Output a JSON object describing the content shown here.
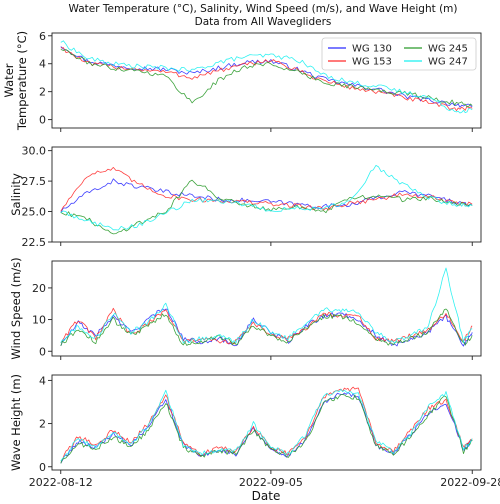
{
  "title_line1": "Water Temperature (°C), Salinity, Wind Speed (m/s), and Wave Height (m)",
  "title_line2": "Data from All Wavegliders",
  "xlabel": "Date",
  "colors": {
    "WG 130": "#2b2bff",
    "WG 153": "#ff2b2b",
    "WG 245": "#2a9a2a",
    "WG 247": "#19f0f0"
  },
  "chart_data": [
    {
      "type": "line",
      "ylabel": "Water Temperature (°C)",
      "ylabel_lines": [
        "Water",
        "Temperature (°C)"
      ],
      "xlim": [
        "2022-08-11",
        "2022-09-29"
      ],
      "ylim": [
        -0.6,
        6.2
      ],
      "yticks": [
        0,
        2,
        4,
        6
      ],
      "xticks": [
        "2022-08-12",
        "2022-09-05",
        "2022-09-28"
      ],
      "x": [
        "2022-08-12",
        "2022-08-15",
        "2022-08-18",
        "2022-08-21",
        "2022-08-24",
        "2022-08-27",
        "2022-08-30",
        "2022-09-02",
        "2022-09-05",
        "2022-09-08",
        "2022-09-11",
        "2022-09-14",
        "2022-09-17",
        "2022-09-20",
        "2022-09-23",
        "2022-09-26",
        "2022-09-28"
      ],
      "series": [
        {
          "name": "WG 130",
          "values": [
            5.3,
            4.2,
            3.9,
            3.7,
            3.6,
            3.3,
            3.7,
            4.1,
            4.2,
            3.6,
            2.9,
            2.5,
            2.2,
            1.7,
            1.4,
            1.1,
            0.9
          ]
        },
        {
          "name": "WG 153",
          "values": [
            5.2,
            4.0,
            3.8,
            3.6,
            3.4,
            3.0,
            3.5,
            3.9,
            4.3,
            3.5,
            2.8,
            2.3,
            2.0,
            1.6,
            1.2,
            0.8,
            0.8
          ]
        },
        {
          "name": "WG 245",
          "values": [
            5.1,
            4.1,
            3.7,
            3.5,
            3.1,
            1.2,
            2.8,
            3.8,
            4.0,
            3.4,
            2.7,
            2.4,
            2.1,
            1.9,
            1.6,
            1.2,
            1.0
          ]
        },
        {
          "name": "WG 247",
          "values": [
            5.6,
            4.4,
            4.0,
            3.8,
            3.7,
            3.5,
            4.1,
            4.5,
            4.6,
            4.3,
            3.2,
            2.7,
            2.4,
            2.0,
            1.6,
            0.6,
            0.7
          ]
        }
      ],
      "legend": {
        "position": "upper-right",
        "columns": 2,
        "entries": [
          "WG 130",
          "WG 153",
          "WG 245",
          "WG 247"
        ]
      }
    },
    {
      "type": "line",
      "ylabel": "Salinity",
      "ylabel_lines": [
        "Salinity"
      ],
      "xlim": [
        "2022-08-11",
        "2022-09-29"
      ],
      "ylim": [
        22.5,
        30.3
      ],
      "yticks": [
        22.5,
        25.0,
        27.5,
        30.0
      ],
      "x": [
        "2022-08-12",
        "2022-08-15",
        "2022-08-18",
        "2022-08-21",
        "2022-08-24",
        "2022-08-27",
        "2022-08-30",
        "2022-09-02",
        "2022-09-05",
        "2022-09-08",
        "2022-09-11",
        "2022-09-14",
        "2022-09-17",
        "2022-09-20",
        "2022-09-23",
        "2022-09-26",
        "2022-09-28"
      ],
      "series": [
        {
          "name": "WG 130",
          "values": [
            25.0,
            26.5,
            27.5,
            27.0,
            26.6,
            26.3,
            26.0,
            25.9,
            25.8,
            25.6,
            25.4,
            25.6,
            26.1,
            26.6,
            26.3,
            25.8,
            25.5
          ]
        },
        {
          "name": "WG 153",
          "values": [
            25.1,
            28.0,
            28.5,
            27.2,
            26.3,
            26.0,
            25.9,
            25.8,
            25.6,
            25.5,
            25.2,
            25.7,
            26.0,
            26.4,
            26.2,
            25.7,
            25.6
          ]
        },
        {
          "name": "WG 245",
          "values": [
            25.0,
            24.4,
            23.1,
            24.1,
            25.0,
            27.6,
            26.2,
            25.6,
            25.2,
            25.4,
            24.9,
            26.1,
            26.3,
            26.0,
            26.1,
            25.6,
            25.5
          ]
        },
        {
          "name": "WG 247",
          "values": [
            25.0,
            24.3,
            23.5,
            23.9,
            24.9,
            25.9,
            25.9,
            25.6,
            25.1,
            25.3,
            25.2,
            25.9,
            28.7,
            27.3,
            26.1,
            25.6,
            25.5
          ]
        }
      ]
    },
    {
      "type": "line",
      "ylabel": "Wind Speed (m/s)",
      "ylabel_lines": [
        "Wind Speed (m/s)"
      ],
      "xlim": [
        "2022-08-11",
        "2022-09-29"
      ],
      "ylim": [
        -1.5,
        28.5
      ],
      "yticks": [
        0,
        10,
        20
      ],
      "x": [
        "2022-08-12",
        "2022-08-14",
        "2022-08-16",
        "2022-08-18",
        "2022-08-20",
        "2022-08-22",
        "2022-08-24",
        "2022-08-26",
        "2022-08-28",
        "2022-08-30",
        "2022-09-01",
        "2022-09-03",
        "2022-09-05",
        "2022-09-07",
        "2022-09-09",
        "2022-09-11",
        "2022-09-13",
        "2022-09-15",
        "2022-09-17",
        "2022-09-19",
        "2022-09-21",
        "2022-09-23",
        "2022-09-25",
        "2022-09-27",
        "2022-09-28"
      ],
      "series": [
        {
          "name": "WG 130",
          "values": [
            2,
            9,
            5,
            11,
            6,
            10,
            14,
            4,
            3,
            4,
            2,
            10,
            6,
            3,
            8,
            11,
            12,
            10,
            5,
            2,
            4,
            6,
            11,
            2,
            6
          ]
        },
        {
          "name": "WG 153",
          "values": [
            3,
            10,
            4,
            13,
            5,
            9,
            13,
            3,
            4,
            3,
            3,
            9,
            5,
            4,
            7,
            12,
            11,
            11,
            4,
            3,
            5,
            7,
            12,
            3,
            8
          ]
        },
        {
          "name": "WG 245",
          "values": [
            2,
            7,
            3,
            10,
            5,
            8,
            12,
            2,
            3,
            5,
            2,
            8,
            5,
            3,
            7,
            11,
            11,
            9,
            4,
            2,
            4,
            6,
            14,
            2,
            5
          ]
        },
        {
          "name": "WG 247",
          "values": [
            3,
            8,
            4,
            12,
            6,
            9,
            15,
            3,
            4,
            5,
            3,
            10,
            6,
            4,
            9,
            13,
            13,
            12,
            6,
            3,
            5,
            8,
            26,
            3,
            7
          ]
        }
      ]
    },
    {
      "type": "line",
      "ylabel": "Wave Height (m)",
      "ylabel_lines": [
        "Wave Height (m)"
      ],
      "xlim": [
        "2022-08-11",
        "2022-09-29"
      ],
      "ylim": [
        -0.15,
        4.25
      ],
      "yticks": [
        0,
        2,
        4
      ],
      "x": [
        "2022-08-12",
        "2022-08-14",
        "2022-08-16",
        "2022-08-18",
        "2022-08-20",
        "2022-08-22",
        "2022-08-24",
        "2022-08-26",
        "2022-08-28",
        "2022-08-30",
        "2022-09-01",
        "2022-09-03",
        "2022-09-05",
        "2022-09-07",
        "2022-09-09",
        "2022-09-11",
        "2022-09-13",
        "2022-09-15",
        "2022-09-17",
        "2022-09-19",
        "2022-09-21",
        "2022-09-23",
        "2022-09-25",
        "2022-09-27",
        "2022-09-28"
      ],
      "series": [
        {
          "name": "WG 130",
          "values": [
            0.2,
            1.2,
            0.9,
            1.5,
            1.0,
            1.8,
            3.2,
            1.0,
            0.5,
            0.8,
            0.6,
            1.8,
            0.8,
            0.5,
            1.3,
            3.0,
            3.4,
            3.3,
            1.0,
            0.6,
            1.5,
            2.5,
            3.0,
            0.8,
            1.2
          ]
        },
        {
          "name": "WG 153",
          "values": [
            0.3,
            1.4,
            1.0,
            1.7,
            1.1,
            2.0,
            3.3,
            1.1,
            0.6,
            0.9,
            0.7,
            1.9,
            0.9,
            0.6,
            1.4,
            3.2,
            3.6,
            3.6,
            1.1,
            0.7,
            1.7,
            2.7,
            3.1,
            0.9,
            1.3
          ]
        },
        {
          "name": "WG 245",
          "values": [
            0.2,
            1.1,
            0.8,
            1.4,
            0.9,
            1.7,
            3.0,
            0.9,
            0.5,
            0.7,
            0.6,
            1.7,
            0.8,
            0.5,
            1.2,
            2.9,
            3.3,
            3.2,
            1.0,
            0.6,
            1.4,
            2.4,
            3.3,
            0.7,
            1.2
          ]
        },
        {
          "name": "WG 247",
          "values": [
            0.3,
            1.3,
            0.9,
            1.6,
            1.0,
            1.9,
            3.5,
            1.0,
            0.6,
            0.8,
            0.7,
            2.0,
            0.9,
            0.6,
            1.5,
            3.3,
            3.5,
            3.4,
            1.2,
            0.7,
            1.6,
            2.8,
            3.4,
            0.8,
            1.3
          ]
        }
      ]
    }
  ]
}
